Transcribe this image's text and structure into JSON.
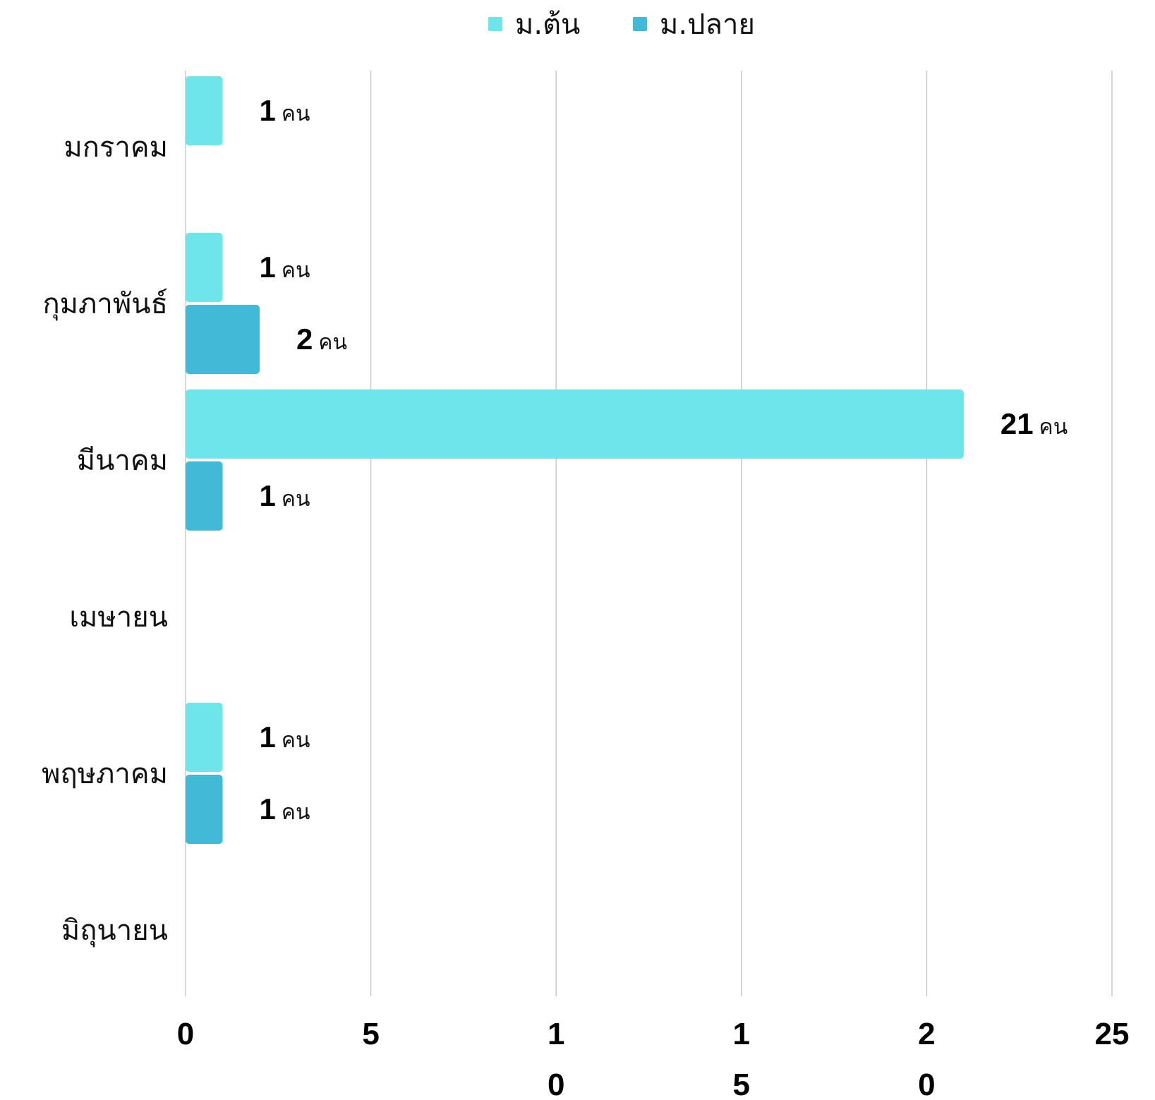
{
  "chart_data": {
    "type": "bar",
    "orientation": "horizontal",
    "categories": [
      "มกราคม",
      "กุมภาพันธ์",
      "มีนาคม",
      "เมษายน",
      "พฤษภาคม",
      "มิถุนายน"
    ],
    "series": [
      {
        "name": "ม.ต้น",
        "color": "#6ee6e9",
        "values": [
          1,
          1,
          21,
          0,
          1,
          0
        ]
      },
      {
        "name": "ม.ปลาย",
        "color": "#42b9d7",
        "values": [
          0,
          2,
          1,
          0,
          1,
          0
        ]
      }
    ],
    "unit_label": "คน",
    "xlim": [
      0,
      25
    ],
    "x_ticks": [
      {
        "value": 0,
        "label": [
          "0"
        ]
      },
      {
        "value": 5,
        "label": [
          "5"
        ]
      },
      {
        "value": 10,
        "label": [
          "1",
          "0"
        ]
      },
      {
        "value": 15,
        "label": [
          "1",
          "5"
        ]
      },
      {
        "value": 20,
        "label": [
          "2",
          "0"
        ]
      },
      {
        "value": 25,
        "label": [
          "25"
        ]
      }
    ],
    "grid": "vertical",
    "legend": "top-center",
    "title": "",
    "xlabel": "",
    "ylabel": ""
  }
}
